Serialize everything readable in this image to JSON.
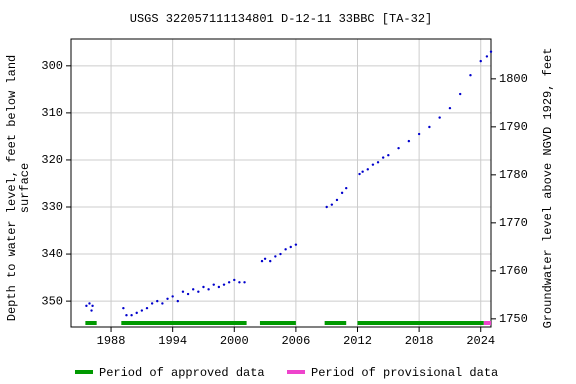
{
  "chart_data": {
    "type": "scatter",
    "title": "USGS 322057111134801 D-12-11 33BBC [TA-32]",
    "y_label": [
      "Depth to water level, feet below land",
      "surface"
    ],
    "y2_label": "Groundwater level above NGVD 1929, feet",
    "xlim": [
      1984.1,
      2025.0
    ],
    "xticks": [
      1988,
      1994,
      2000,
      2006,
      2012,
      2018,
      2024
    ],
    "ylim": [
      355.5,
      294.3
    ],
    "yticks": [
      300,
      310,
      320,
      330,
      340,
      350
    ],
    "y2lim": [
      1748.3,
      1808.3
    ],
    "y2ticks": [
      1750,
      1760,
      1770,
      1780,
      1790,
      1800
    ],
    "grid": true,
    "series": [
      {
        "color": "#0000cc",
        "x": [
          1985.6,
          1985.9,
          1986.1,
          1986.2,
          1989.2,
          1989.5,
          1990,
          1990.5,
          1991,
          1991.5,
          1992,
          1992.5,
          1993,
          1993.5,
          1994,
          1994.5,
          1995,
          1995.5,
          1996,
          1996.5,
          1997,
          1997.5,
          1998,
          1998.5,
          1999,
          1999.5,
          2000,
          2000.5,
          2001,
          2002.7,
          2003,
          2003.5,
          2004,
          2004.5,
          2005,
          2005.5,
          2006,
          2009,
          2009.5,
          2010,
          2010.5,
          2010.9,
          2012.2,
          2012.5,
          2013,
          2013.5,
          2014,
          2014.5,
          2015,
          2016,
          2017,
          2018,
          2019,
          2020,
          2021,
          2022,
          2023,
          2024,
          2024.6,
          2025
        ],
        "values": [
          351,
          350.5,
          352,
          351,
          351.5,
          353,
          353,
          352.5,
          352,
          351.5,
          350.5,
          350,
          350.5,
          349.5,
          349,
          350,
          348,
          348.5,
          347.5,
          348,
          347,
          347.5,
          346.5,
          347,
          346.5,
          346,
          345.5,
          346,
          346,
          341.5,
          341,
          341.5,
          340.5,
          340,
          339,
          338.5,
          338,
          330,
          329.5,
          328.5,
          327,
          326,
          323,
          322.5,
          322,
          321,
          320.5,
          319.5,
          319,
          317.5,
          316,
          314.5,
          313,
          311,
          309,
          306,
          302,
          299,
          298,
          297
        ]
      }
    ],
    "periods": [
      {
        "name": "Period of approved data",
        "color": "#009900",
        "ranges": [
          [
            1985.5,
            1986.6
          ],
          [
            1989,
            2001.2
          ],
          [
            2002.5,
            2006
          ],
          [
            2008.8,
            2010.9
          ],
          [
            2012,
            2024.3
          ]
        ]
      },
      {
        "name": "Period of provisional data",
        "color": "#ee44cc",
        "ranges": [
          [
            2024.3,
            2025.0
          ]
        ]
      }
    ]
  }
}
